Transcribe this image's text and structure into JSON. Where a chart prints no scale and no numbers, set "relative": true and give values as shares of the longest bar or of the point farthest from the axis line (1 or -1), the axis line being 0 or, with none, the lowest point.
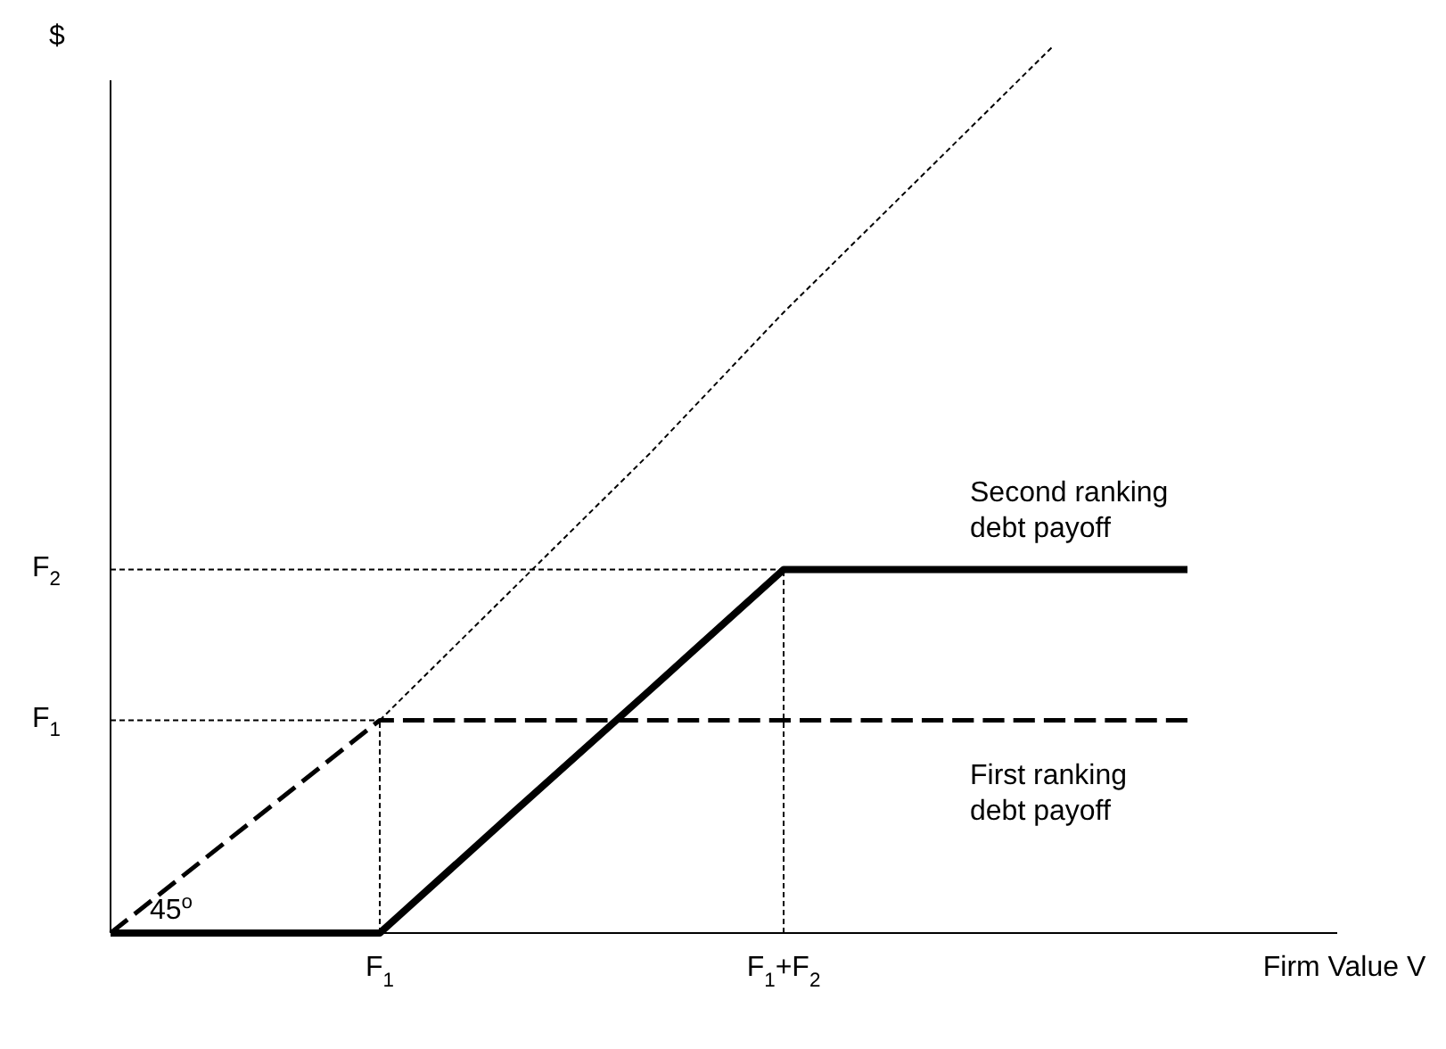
{
  "chart_data": {
    "type": "line",
    "relative": true,
    "xlabel": "Firm Value V",
    "ylabel": "$",
    "categories": [
      null,
      null,
      "F$_{1}$",
      null,
      null,
      "F$_{1}$+F$_{2}$",
      null,
      null,
      null
    ],
    "legend": false,
    "grid": false,
    "annotations": [
      "45$^{o}$"
    ],
    "ref_lines": [
      {
        "axis": "x",
        "value": "F$_{1}$",
        "color": "#000000",
        "line_style": "dotted"
      },
      {
        "axis": "x",
        "value": "F$_{1}$+F$_{2}$",
        "color": "#000000",
        "line_style": "dotted"
      },
      {
        "axis": "y",
        "value": 0.24,
        "label": "F$_{1}$",
        "color": "#000000",
        "line_style": "dotted"
      },
      {
        "axis": "y",
        "value": 0.41,
        "label": "F$_{2}$",
        "color": "#000000",
        "line_style": "dotted"
      }
    ],
    "series": [
      {
        "values": [
          null,
          null,
          0.24,
          0.39,
          0.54,
          0.7,
          0.85,
          1,
          null
        ],
        "color": "#000000",
        "line_style": "dotted"
      },
      {
        "name": "First ranking debt payoff",
        "values": [
          0,
          0.12,
          0.24,
          0.24,
          0.24,
          0.24,
          0.24,
          0.24,
          0.24
        ],
        "color": "#000000",
        "line_style": "dashed"
      },
      {
        "name": "Second ranking debt payoff",
        "values": [
          0,
          0,
          0,
          0.137,
          0.273,
          0.41,
          0.41,
          0.41,
          0.41
        ],
        "color": "#000000",
        "line_style": "solid"
      }
    ]
  }
}
